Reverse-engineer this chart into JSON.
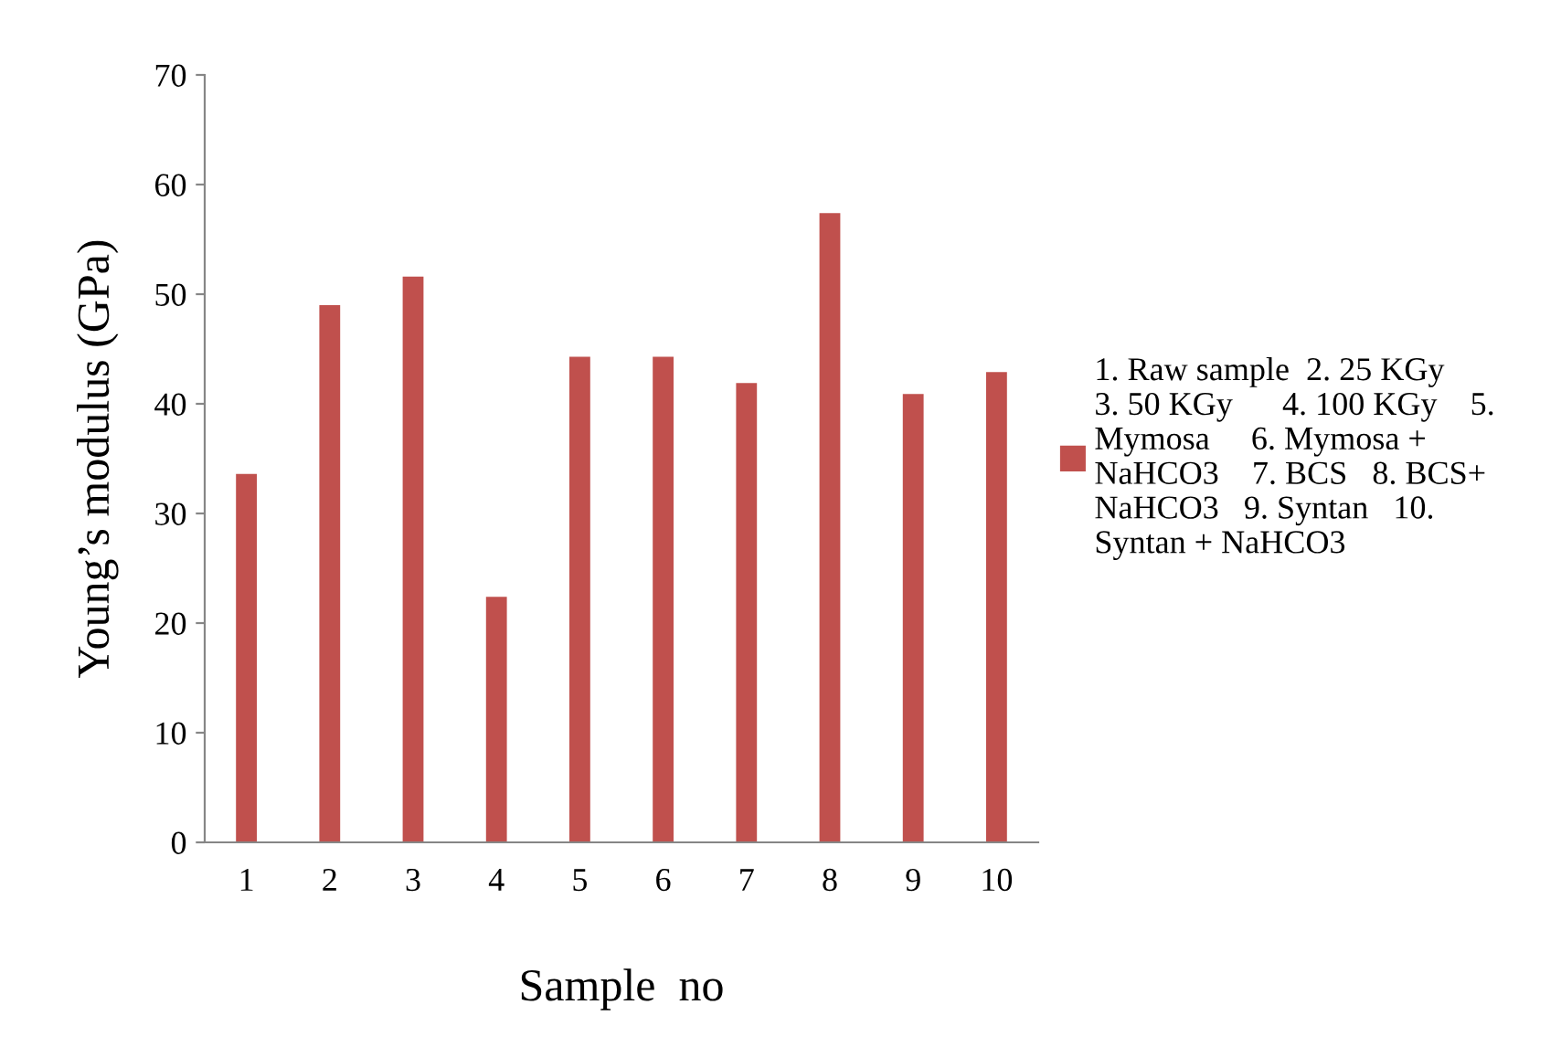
{
  "chart_data": {
    "type": "bar",
    "xlabel": "Sample  no",
    "ylabel": "Young’s modulus (GPa)",
    "categories": [
      "1",
      "2",
      "3",
      "4",
      "5",
      "6",
      "7",
      "8",
      "9",
      "10"
    ],
    "series": [
      {
        "name": "1. Raw sample  2. 25 KGy\n3. 50 KGy      4. 100 KGy    5.\nMymosa     6. Mymosa +\nNaHCO3    7. BCS   8. BCS+\nNaHCO3   9. Syntan   10.\nSyntan + NaHCO3",
        "color": "#c0504d",
        "values": [
          33.6,
          49.0,
          51.6,
          22.4,
          44.3,
          44.3,
          41.9,
          57.4,
          40.9,
          42.9
        ]
      }
    ],
    "ylim": [
      0,
      70
    ],
    "yticks": [
      0,
      10,
      20,
      30,
      40,
      50,
      60,
      70
    ],
    "grid": false,
    "legend": "right"
  }
}
